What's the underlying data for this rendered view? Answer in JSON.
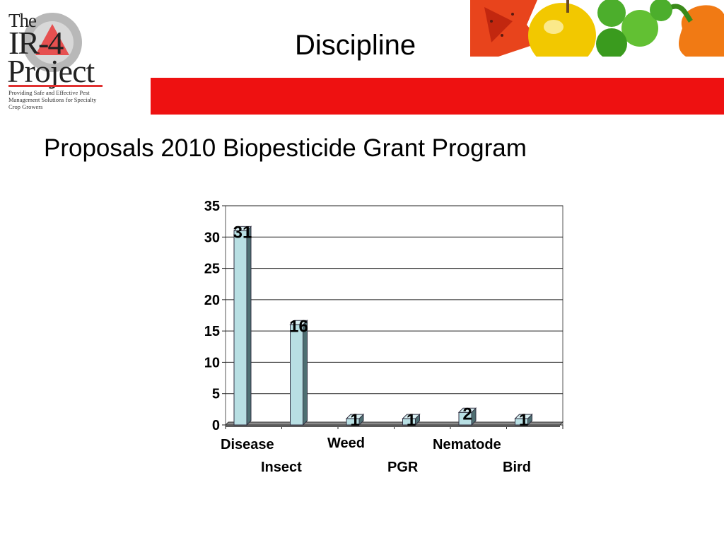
{
  "logo": {
    "line1": "The",
    "line2": "IR-4",
    "line3": "Project",
    "tagline": "Providing Safe and Effective Pest Management Solutions for Specialty Crop Growers"
  },
  "header": {
    "title": "Discipline"
  },
  "subtitle": "Proposals 2010 Biopesticide Grant Program",
  "colors": {
    "red_bar": "#ee1111",
    "bar_front": "#b8dfe3",
    "bar_side": "#4e6f72",
    "logo_accent": "#e03030"
  },
  "chart_data": {
    "type": "bar",
    "categories": [
      "Disease",
      "Insect",
      "Weed",
      "PGR",
      "Nematode",
      "Bird"
    ],
    "values": [
      31,
      16,
      1,
      1,
      2,
      1
    ],
    "data_labels": [
      "31",
      "16",
      "1",
      "1",
      "2",
      "1"
    ],
    "yticks": [
      "0",
      "5",
      "10",
      "15",
      "20",
      "25",
      "30",
      "35"
    ],
    "ylim": [
      0,
      35
    ],
    "grid": true,
    "legend": "none",
    "title": "",
    "xlabel": "",
    "ylabel": ""
  }
}
